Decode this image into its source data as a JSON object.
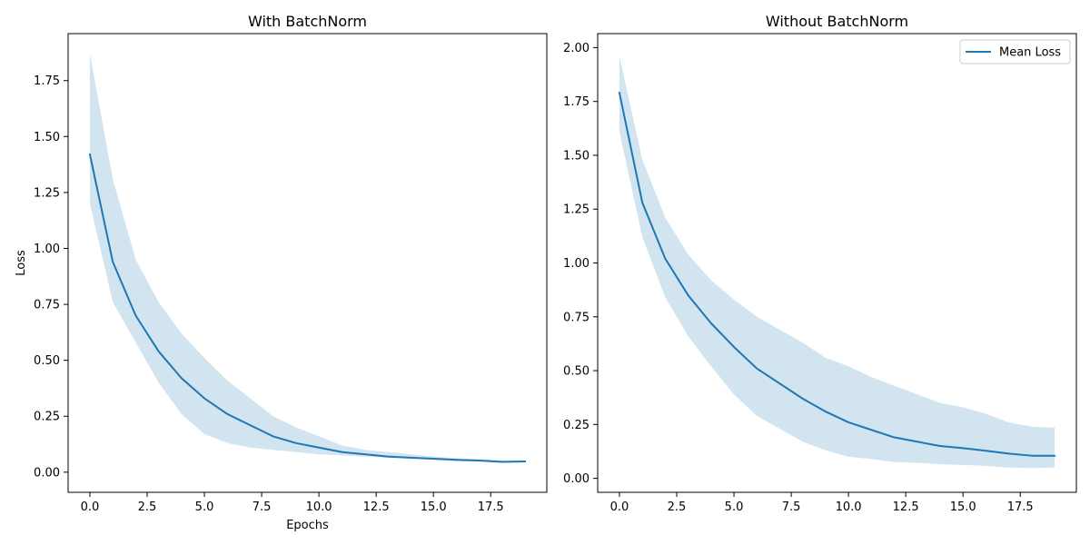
{
  "chart_data": [
    {
      "type": "line",
      "title": "With BatchNorm",
      "xlabel": "Epochs",
      "ylabel": "Loss",
      "xlim": [
        -0.95,
        19.95
      ],
      "ylim": [
        -0.09,
        1.96
      ],
      "xticks": [
        0.0,
        2.5,
        5.0,
        7.5,
        10.0,
        12.5,
        15.0,
        17.5
      ],
      "xtick_labels": [
        "0.0",
        "2.5",
        "5.0",
        "7.5",
        "10.0",
        "12.5",
        "15.0",
        "17.5"
      ],
      "yticks": [
        0.0,
        0.25,
        0.5,
        0.75,
        1.0,
        1.25,
        1.5,
        1.75
      ],
      "ytick_labels": [
        "0.00",
        "0.25",
        "0.50",
        "0.75",
        "1.00",
        "1.25",
        "1.50",
        "1.75"
      ],
      "legend": null,
      "grid": false,
      "x": [
        0,
        1,
        2,
        3,
        4,
        5,
        6,
        7,
        8,
        9,
        10,
        11,
        12,
        13,
        14,
        15,
        16,
        17,
        18,
        19
      ],
      "series": [
        {
          "values": [
            1.42,
            0.94,
            0.7,
            0.54,
            0.42,
            0.33,
            0.26,
            0.21,
            0.16,
            0.13,
            0.11,
            0.09,
            0.08,
            0.07,
            0.065,
            0.06,
            0.055,
            0.052,
            0.046,
            0.048
          ],
          "lower": [
            1.2,
            0.76,
            0.58,
            0.4,
            0.26,
            0.17,
            0.13,
            0.11,
            0.1,
            0.09,
            0.08,
            0.075,
            0.07,
            0.065,
            0.06,
            0.055,
            0.05,
            0.048,
            0.043,
            0.045
          ],
          "upper": [
            1.87,
            1.31,
            0.95,
            0.76,
            0.62,
            0.51,
            0.41,
            0.33,
            0.25,
            0.2,
            0.16,
            0.12,
            0.1,
            0.09,
            0.08,
            0.07,
            0.062,
            0.058,
            0.052,
            0.052
          ],
          "color": "#1f77b4",
          "band_color": "#1f77b4"
        }
      ]
    },
    {
      "type": "line",
      "title": "Without BatchNorm",
      "xlabel": "",
      "ylabel": "",
      "xlim": [
        -0.95,
        19.95
      ],
      "ylim": [
        -0.065,
        2.065
      ],
      "xticks": [
        0.0,
        2.5,
        5.0,
        7.5,
        10.0,
        12.5,
        15.0,
        17.5
      ],
      "xtick_labels": [
        "0.0",
        "2.5",
        "5.0",
        "7.5",
        "10.0",
        "12.5",
        "15.0",
        "17.5"
      ],
      "yticks": [
        0.0,
        0.25,
        0.5,
        0.75,
        1.0,
        1.25,
        1.5,
        1.75,
        2.0
      ],
      "ytick_labels": [
        "0.00",
        "0.25",
        "0.50",
        "0.75",
        "1.00",
        "1.25",
        "1.50",
        "1.75",
        "2.00"
      ],
      "legend": "upper right",
      "grid": false,
      "x": [
        0,
        1,
        2,
        3,
        4,
        5,
        6,
        7,
        8,
        9,
        10,
        11,
        12,
        13,
        14,
        15,
        16,
        17,
        18,
        19
      ],
      "series": [
        {
          "name": "Mean Loss",
          "values": [
            1.79,
            1.28,
            1.02,
            0.85,
            0.72,
            0.61,
            0.51,
            0.44,
            0.37,
            0.31,
            0.26,
            0.225,
            0.19,
            0.17,
            0.15,
            0.14,
            0.128,
            0.115,
            0.105,
            0.105
          ],
          "lower": [
            1.61,
            1.12,
            0.84,
            0.66,
            0.52,
            0.39,
            0.29,
            0.23,
            0.17,
            0.13,
            0.1,
            0.09,
            0.075,
            0.072,
            0.065,
            0.062,
            0.058,
            0.05,
            0.048,
            0.05
          ],
          "upper": [
            1.96,
            1.48,
            1.21,
            1.04,
            0.92,
            0.83,
            0.75,
            0.69,
            0.63,
            0.56,
            0.52,
            0.47,
            0.43,
            0.39,
            0.35,
            0.33,
            0.3,
            0.26,
            0.24,
            0.235
          ],
          "color": "#1f77b4",
          "band_color": "#1f77b4"
        }
      ]
    }
  ]
}
